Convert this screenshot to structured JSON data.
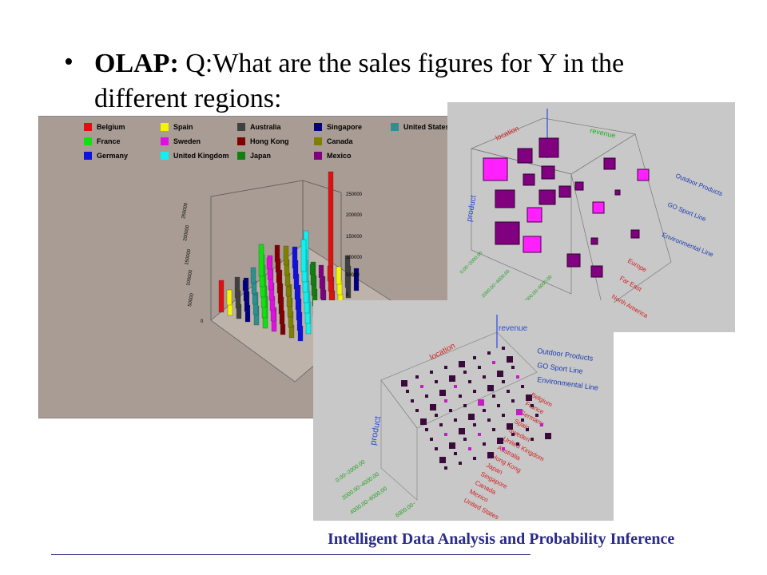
{
  "slide": {
    "bullet": "•",
    "heading_bold": "OLAP:",
    "heading_rest": " Q:What are the sales figures for Y in the different regions:"
  },
  "legend": [
    {
      "label": "Belgium",
      "color": "#e01010"
    },
    {
      "label": "Spain",
      "color": "#f5f500"
    },
    {
      "label": "Australia",
      "color": "#404040"
    },
    {
      "label": "Singapore",
      "color": "#000080"
    },
    {
      "label": "United States",
      "color": "#2a9090"
    },
    {
      "label": "France",
      "color": "#10e010"
    },
    {
      "label": "Sweden",
      "color": "#e010e0"
    },
    {
      "label": "Hong Kong",
      "color": "#800000"
    },
    {
      "label": "Canada",
      "color": "#808000"
    },
    {
      "label": "Germany",
      "color": "#1010e0"
    },
    {
      "label": "United Kingdom",
      "color": "#10f0f0"
    },
    {
      "label": "Japan",
      "color": "#108010"
    },
    {
      "label": "Mexico",
      "color": "#800080"
    }
  ],
  "chart1": {
    "right_ticks": [
      "250000",
      "200000",
      "150000",
      "100000",
      "50000",
      "0"
    ],
    "left_ticks": [
      "250000",
      "200000",
      "150000",
      "100000",
      "50000",
      "0"
    ]
  },
  "chart2": {
    "axis_location": "location",
    "axis_revenue": "revenue",
    "axis_product": "product",
    "product_lines": [
      "Outdoor Products",
      "GO Sport Line",
      "Environmental Line"
    ],
    "regions": [
      "Europe",
      "Far East",
      "North America"
    ],
    "revenue_bins": [
      "0.00~2000.00",
      "2000.00~4000.00",
      "4000.00~6000.00"
    ]
  },
  "chart3": {
    "axis_location": "location",
    "axis_revenue": "revenue",
    "axis_product": "product",
    "product_lines": [
      "Outdoor Products",
      "GO Sport Line",
      "Environmental Line"
    ],
    "countries": [
      "Belgium",
      "France",
      "Germany",
      "Spain",
      "Sweden",
      "United Kingdom",
      "Australia",
      "Hong Kong",
      "Japan",
      "Singapore",
      "Canada",
      "Mexico",
      "United States"
    ],
    "revenue_bins": [
      "0.00~2000.00",
      "2000.00~4000.00",
      "4000.00~6000.00",
      "6000.00~"
    ]
  },
  "footer": {
    "text": "Intelligent Data Analysis and Probability Inference"
  }
}
